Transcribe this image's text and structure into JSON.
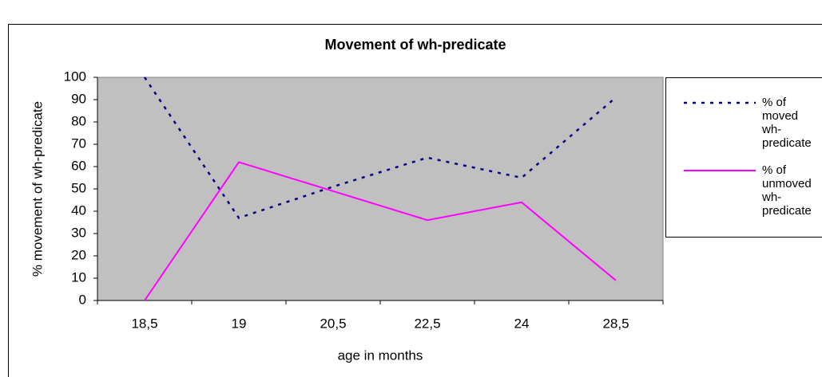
{
  "chart_data": {
    "type": "line",
    "title": "Movement of wh-predicate",
    "x_label": "age in months",
    "y_label": "% movement of wh-predicate",
    "categories": [
      "18,5",
      "19",
      "20,5",
      "22,5",
      "24",
      "28,5"
    ],
    "series": [
      {
        "name": "% of moved wh-predicate",
        "color": "#000080",
        "style": "dotted",
        "values": [
          100,
          37,
          51,
          64,
          55,
          91
        ]
      },
      {
        "name": "% of unmoved wh-predicate",
        "color": "#ff00ff",
        "style": "solid",
        "values": [
          0,
          62,
          49,
          36,
          44,
          9
        ]
      }
    ],
    "ylim": [
      0,
      100
    ],
    "yticks": [
      0,
      10,
      20,
      30,
      40,
      50,
      60,
      70,
      80,
      90,
      100
    ],
    "grid": false,
    "legend": "right"
  }
}
